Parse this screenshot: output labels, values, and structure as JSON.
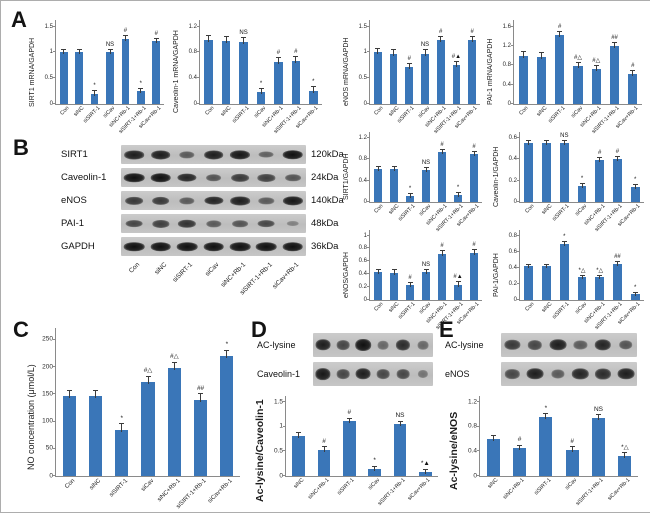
{
  "colors": {
    "bar": "#3a76b8",
    "error_bar": "#3c3c3c",
    "axis": "#8a8a8a",
    "band": "#1a1a1a"
  },
  "panels": {
    "a": "A",
    "b": "B",
    "c": "C",
    "d": "D",
    "e": "E"
  },
  "chart_data": [
    {
      "id": "a-sirt1-mrna",
      "type": "bar",
      "ylabel": "SIRT1 mRNA/GAPDH",
      "ylim": [
        0,
        1.5
      ],
      "yticks": [
        0,
        0.5,
        1,
        1.5
      ],
      "categories": [
        "Con",
        "siNC",
        "siSIRT-1",
        "siCav",
        "siNC+Rb-1",
        "siSIRT-1+Rb-1",
        "siCav+Rb-1"
      ],
      "values": [
        1.0,
        1.0,
        0.2,
        1.0,
        1.27,
        0.25,
        1.22
      ],
      "err": 0.05,
      "annotations": [
        "",
        "",
        "*",
        "NS",
        "#",
        "*",
        "#"
      ]
    },
    {
      "id": "a-cav1-mrna",
      "type": "bar",
      "ylabel": "Caveolin-1 mRNA/GAPDH",
      "ylim": [
        0,
        1.2
      ],
      "yticks": [
        0,
        0.4,
        0.8,
        1.2
      ],
      "categories": [
        "Con",
        "siNC",
        "siSIRT-1",
        "siCav",
        "siNC+Rb-1",
        "siSIRT-1+Rb-1",
        "siCav+Rb-1"
      ],
      "values": [
        1.0,
        0.98,
        0.97,
        0.18,
        0.65,
        0.67,
        0.2
      ],
      "err": 0.06,
      "annotations": [
        "",
        "",
        "NS",
        "*",
        "#",
        "#",
        "*"
      ]
    },
    {
      "id": "a-enos-mrna",
      "type": "bar",
      "ylabel": "eNOS mRNA/GAPDH",
      "ylim": [
        0,
        1.5
      ],
      "yticks": [
        0,
        0.5,
        1,
        1.5
      ],
      "categories": [
        "Con",
        "siNC",
        "siSIRT-1",
        "siCav",
        "siNC+Rb-1",
        "siSIRT-1+Rb-1",
        "siCav+Rb-1"
      ],
      "values": [
        1.0,
        0.98,
        0.72,
        0.98,
        1.25,
        0.75,
        1.25
      ],
      "err": 0.06,
      "annotations": [
        "",
        "",
        "#",
        "NS",
        "#",
        "#▲",
        "#"
      ]
    },
    {
      "id": "a-pai1-mrna",
      "type": "bar",
      "ylabel": "PAI-1 mRNA/GAPDH",
      "ylim": [
        0,
        1.6
      ],
      "yticks": [
        0,
        0.4,
        0.8,
        1.2,
        1.6
      ],
      "categories": [
        "Con",
        "siNC",
        "siSIRT-1",
        "siCav",
        "siNC+Rb-1",
        "siSIRT-1+Rb-1",
        "siCav+Rb-1"
      ],
      "values": [
        1.0,
        0.98,
        1.42,
        0.78,
        0.72,
        1.2,
        0.62
      ],
      "err": 0.07,
      "annotations": [
        "",
        "",
        "#",
        "#△",
        "#△",
        "##",
        "#"
      ]
    },
    {
      "id": "b-sirt1-protein",
      "type": "bar",
      "ylabel": "SIRT1/GAPDH",
      "ylim": [
        0,
        1.2
      ],
      "yticks": [
        0,
        0.4,
        0.8,
        1.2
      ],
      "categories": [
        "Con",
        "siNC",
        "siSIRT-1",
        "siCav",
        "siNC+Rb-1",
        "siSIRT-1+Rb-1",
        "siCav+Rb-1"
      ],
      "values": [
        0.62,
        0.62,
        0.12,
        0.6,
        0.93,
        0.13,
        0.9
      ],
      "err": 0.03,
      "annotations": [
        "",
        "",
        "*",
        "NS",
        "#",
        "*",
        "#"
      ]
    },
    {
      "id": "b-cav1-protein",
      "type": "bar",
      "ylabel": "Caveolin-1/GAPDH",
      "ylim": [
        0,
        0.6
      ],
      "yticks": [
        0,
        0.2,
        0.4,
        0.6
      ],
      "categories": [
        "Con",
        "siNC",
        "siSIRT-1",
        "siCav",
        "siNC+Rb-1",
        "siSIRT-1+Rb-1",
        "siCav+Rb-1"
      ],
      "values": [
        0.55,
        0.55,
        0.55,
        0.15,
        0.39,
        0.4,
        0.14
      ],
      "err": 0.02,
      "annotations": [
        "",
        "",
        "NS",
        "*",
        "#",
        "#",
        "*"
      ]
    },
    {
      "id": "b-enos-protein",
      "type": "bar",
      "ylabel": "eNOS/GAPDH",
      "ylim": [
        0,
        1.0
      ],
      "yticks": [
        0,
        0.2,
        0.4,
        0.6,
        0.8,
        1
      ],
      "categories": [
        "Con",
        "siNC",
        "siSIRT-1",
        "siCav",
        "siNC+Rb-1",
        "siSIRT-1+Rb-1",
        "siCav+Rb-1"
      ],
      "values": [
        0.43,
        0.42,
        0.23,
        0.43,
        0.72,
        0.24,
        0.73
      ],
      "err": 0.04,
      "annotations": [
        "",
        "",
        "#",
        "NS",
        "#",
        "#▲",
        "#"
      ]
    },
    {
      "id": "b-pai1-protein",
      "type": "bar",
      "ylabel": "PAI-1/GAPDH",
      "ylim": [
        0,
        0.8
      ],
      "yticks": [
        0,
        0.2,
        0.4,
        0.6,
        0.8
      ],
      "categories": [
        "Con",
        "siNC",
        "siSIRT-1",
        "siCav",
        "siNC+Rb-1",
        "siSIRT-1+Rb-1",
        "siCav+Rb-1"
      ],
      "values": [
        0.42,
        0.42,
        0.7,
        0.28,
        0.28,
        0.45,
        0.07
      ],
      "err": 0.02,
      "annotations": [
        "",
        "",
        "*",
        "*△",
        "*△",
        "##",
        "*"
      ]
    },
    {
      "id": "c-no-concentration",
      "type": "bar",
      "ylabel": "NO concentration (μmol/L)",
      "ylim": [
        0,
        250
      ],
      "yticks": [
        0,
        50,
        100,
        150,
        200,
        250
      ],
      "categories": [
        "Con",
        "siNC",
        "siSIRT-1",
        "siCav",
        "siNC+Rb-1",
        "siSIRT-1+Rb-1",
        "siCav+Rb-1"
      ],
      "values": [
        147,
        146,
        85,
        172,
        198,
        140,
        220
      ],
      "err": 10,
      "annotations": [
        "",
        "",
        "*",
        "#△",
        "#△",
        "##",
        "*"
      ]
    },
    {
      "id": "d-aclysine-cav1",
      "type": "bar",
      "ylabel": "Ac-lysine/Caveolin-1",
      "ylim": [
        0,
        1.5
      ],
      "yticks": [
        0,
        0.5,
        1,
        1.5
      ],
      "categories": [
        "siNC",
        "siNC+Rb-1",
        "siSIRT-1",
        "siCav",
        "siSIRT-1+Rb-1",
        "siCav+Rb-1"
      ],
      "values": [
        0.82,
        0.54,
        1.12,
        0.14,
        1.06,
        0.08
      ],
      "err": 0.05,
      "annotations": [
        "",
        "#",
        "#",
        "*",
        "NS",
        "*▲"
      ]
    },
    {
      "id": "e-aclysine-enos",
      "type": "bar",
      "ylabel": "Ac-lysine/eNOS",
      "ylim": [
        0,
        1.2
      ],
      "yticks": [
        0,
        0.4,
        0.8,
        1.2
      ],
      "categories": [
        "siNC",
        "siNC+Rb-1",
        "siSIRT-1",
        "siCav",
        "siSIRT-1+Rb-1",
        "siCav+Rb-1"
      ],
      "values": [
        0.61,
        0.45,
        0.97,
        0.43,
        0.95,
        0.33
      ],
      "err": 0.04,
      "annotations": [
        "",
        "#",
        "*",
        "#",
        "NS",
        "*△"
      ]
    }
  ],
  "blots": [
    {
      "id": "panel-b-blot",
      "rows": [
        {
          "label": "SIRT1",
          "kda": "120kDa",
          "bands": [
            0.9,
            0.9,
            0.45,
            0.9,
            0.95,
            0.4,
            1.0
          ]
        },
        {
          "label": "Caveolin-1",
          "kda": "24kDa",
          "bands": [
            1.0,
            1.0,
            0.85,
            0.5,
            0.7,
            0.65,
            0.5
          ]
        },
        {
          "label": "eNOS",
          "kda": "140kDa",
          "bands": [
            0.7,
            0.7,
            0.45,
            0.85,
            0.9,
            0.45,
            0.95
          ]
        },
        {
          "label": "PAI-1",
          "kda": "48kDa",
          "bands": [
            0.6,
            0.65,
            0.75,
            0.45,
            0.5,
            0.6,
            0.15
          ]
        },
        {
          "label": "GAPDH",
          "kda": "36kDa",
          "bands": [
            1.0,
            1.0,
            1.0,
            1.0,
            1.0,
            1.0,
            1.0
          ]
        }
      ],
      "lanes": [
        "Con",
        "siNC",
        "siSIRT-1",
        "siCav",
        "siNC+Rb-1",
        "siSIRT-1+Rb-1",
        "siCav+Rb-1"
      ]
    },
    {
      "id": "panel-d-blot",
      "rows": [
        {
          "label": "AC-lysine",
          "bands": [
            0.9,
            0.6,
            1.0,
            0.35,
            0.8,
            0.35
          ]
        },
        {
          "label": "Caveolin-1",
          "bands": [
            0.95,
            0.6,
            0.9,
            0.6,
            0.6,
            0.25
          ]
        }
      ]
    },
    {
      "id": "panel-e-blot",
      "rows": [
        {
          "label": "AC-lysine",
          "bands": [
            0.7,
            0.6,
            0.9,
            0.45,
            0.85,
            0.5
          ]
        },
        {
          "label": "eNOS",
          "bands": [
            0.6,
            0.9,
            0.45,
            0.85,
            0.8,
            0.9
          ]
        }
      ]
    }
  ]
}
